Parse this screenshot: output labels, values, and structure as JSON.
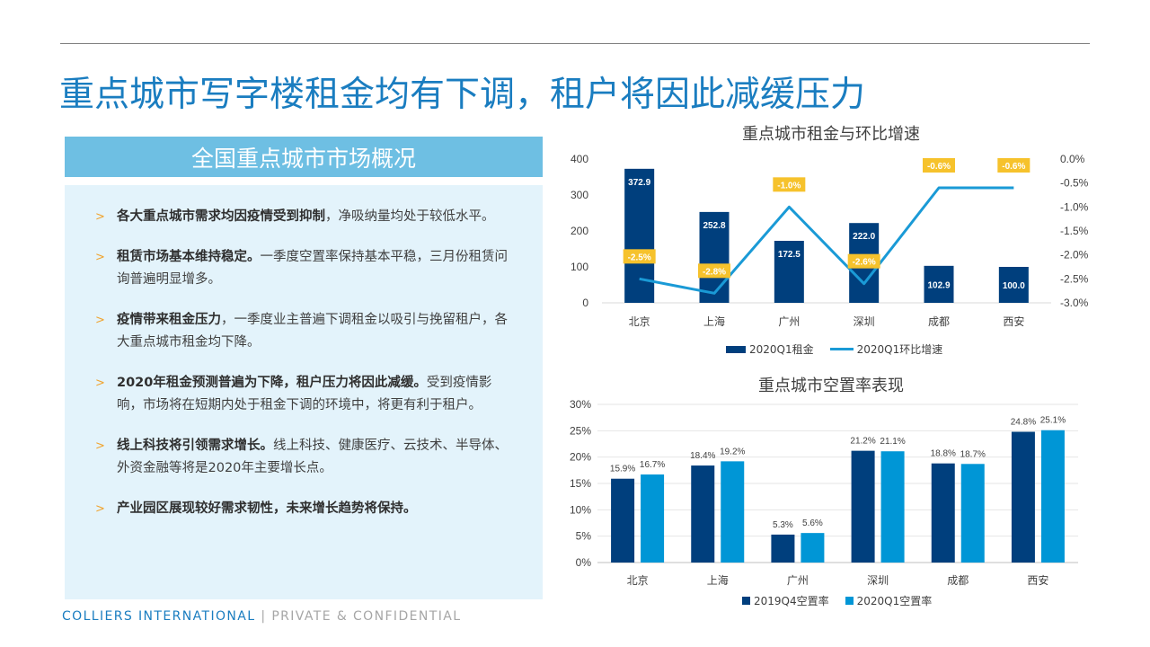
{
  "page": {
    "title": "重点城市写字楼租金均有下调，租户将因此减缓压力"
  },
  "panel": {
    "header": "全国重点城市市场概况",
    "bullets": [
      {
        "strong": "各大重点城市需求均因疫情受到抑制",
        "rest": "，净吸纳量均处于较低水平。"
      },
      {
        "strong": "租赁市场基本维持稳定。",
        "rest": "一季度空置率保持基本平稳，三月份租赁问询普遍明显增多。"
      },
      {
        "strong": "疫情带来租金压力",
        "rest": "，一季度业主普遍下调租金以吸引与挽留租户，各大重点城市租金均下降。"
      },
      {
        "strong": "2020年租金预测普遍为下降，租户压力将因此减缓。",
        "rest": "受到疫情影响，市场将在短期内处于租金下调的环境中，将更有利于租户。"
      },
      {
        "strong": "线上科技将引领需求增长。",
        "rest": "线上科技、健康医疗、云技术、半导体、外资金融等将是2020年主要增长点。"
      },
      {
        "strong": "产业园区展现较好需求韧性，未来增长趋势将保持。",
        "rest": ""
      }
    ]
  },
  "chart_data": [
    {
      "type": "bar",
      "title": "重点城市租金与环比增速",
      "categories": [
        "北京",
        "上海",
        "广州",
        "深圳",
        "成都",
        "西安"
      ],
      "series": [
        {
          "name": "2020Q1租金",
          "kind": "bar",
          "axis": "left",
          "color": "#003f7d",
          "values": [
            372.9,
            252.8,
            172.5,
            222.0,
            102.9,
            100.0
          ],
          "labels": [
            "372.9",
            "252.8",
            "172.5",
            "222.0",
            "102.9",
            "100.0"
          ]
        },
        {
          "name": "2020Q1环比增速",
          "kind": "line",
          "axis": "right",
          "color": "#1a9ad6",
          "values": [
            -2.5,
            -2.8,
            -1.0,
            -2.6,
            -0.6,
            -0.6
          ],
          "labels": [
            "-2.5%",
            "-2.8%",
            "-1.0%",
            "-2.6%",
            "-0.6%",
            "-0.6%"
          ]
        }
      ],
      "left_axis": {
        "ylim": [
          0,
          400
        ],
        "ticks": [
          "400",
          "300",
          "200",
          "100",
          "0"
        ]
      },
      "right_axis": {
        "ylim": [
          -3.0,
          0.0
        ],
        "ticks": [
          "0.0%",
          "-0.5%",
          "-1.0%",
          "-1.5%",
          "-2.0%",
          "-2.5%",
          "-3.0%"
        ]
      },
      "label_box_color": "#f6c22c",
      "legend_placement": "bottom"
    },
    {
      "type": "bar",
      "title": "重点城市空置率表现",
      "categories": [
        "北京",
        "上海",
        "广州",
        "深圳",
        "成都",
        "西安"
      ],
      "series": [
        {
          "name": "2019Q4空置率",
          "color": "#003f7d",
          "values": [
            15.9,
            18.4,
            5.3,
            21.2,
            18.8,
            24.8
          ],
          "labels": [
            "15.9%",
            "18.4%",
            "5.3%",
            "21.2%",
            "18.8%",
            "24.8%"
          ]
        },
        {
          "name": "2020Q1空置率",
          "color": "#0096d6",
          "values": [
            16.7,
            19.2,
            5.6,
            21.1,
            18.7,
            25.1
          ],
          "labels": [
            "16.7%",
            "19.2%",
            "5.6%",
            "21.1%",
            "18.7%",
            "25.1%"
          ]
        }
      ],
      "y_axis": {
        "ylim": [
          0,
          30
        ],
        "ticks": [
          "30%",
          "25%",
          "20%",
          "15%",
          "10%",
          "5%",
          "0%"
        ]
      },
      "grid": true,
      "legend_placement": "bottom"
    }
  ],
  "footer": {
    "brand": "COLLIERS INTERNATIONAL",
    "separator": " | ",
    "confidential": "PRIVATE & CONFIDENTIAL"
  }
}
